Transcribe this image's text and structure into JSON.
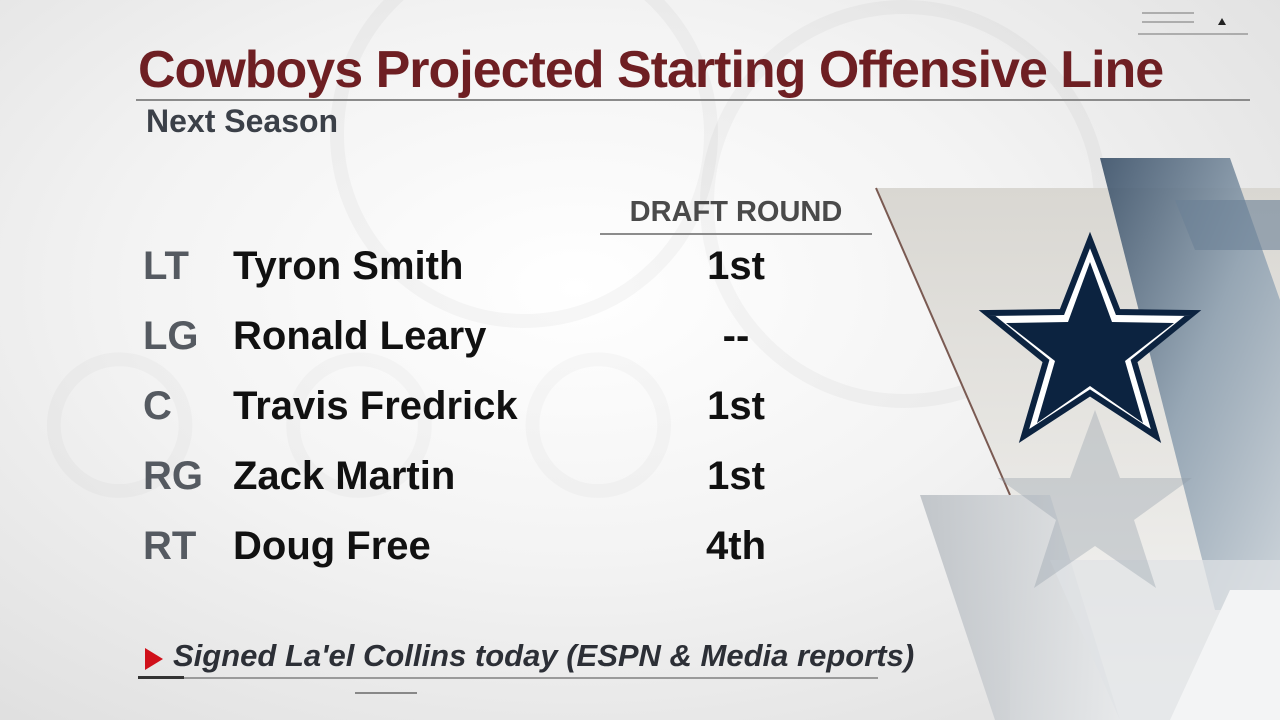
{
  "header": {
    "title": "Cowboys Projected Starting Offensive Line",
    "subtitle": "Next Season"
  },
  "table": {
    "column_header": "DRAFT ROUND",
    "rows": [
      {
        "position": "LT",
        "name": "Tyron Smith",
        "draft_round": "1st"
      },
      {
        "position": "LG",
        "name": "Ronald Leary",
        "draft_round": "--"
      },
      {
        "position": "C",
        "name": "Travis Fredrick",
        "draft_round": "1st"
      },
      {
        "position": "RG",
        "name": "Zack Martin",
        "draft_round": "1st"
      },
      {
        "position": "RT",
        "name": "Doug Free",
        "draft_round": "4th"
      }
    ]
  },
  "footnote": {
    "text": "Signed La'el Collins today (ESPN & Media reports)"
  },
  "colors": {
    "title": "#6e1f23",
    "accent_arrow": "#d0101a",
    "star_navy": "#0c2340",
    "panel_steel": "#5e7487"
  },
  "icons": {
    "logo": "cowboys-star-icon",
    "note_marker": "red-triangle-icon",
    "top_deco": "menu-arrow-icon"
  }
}
